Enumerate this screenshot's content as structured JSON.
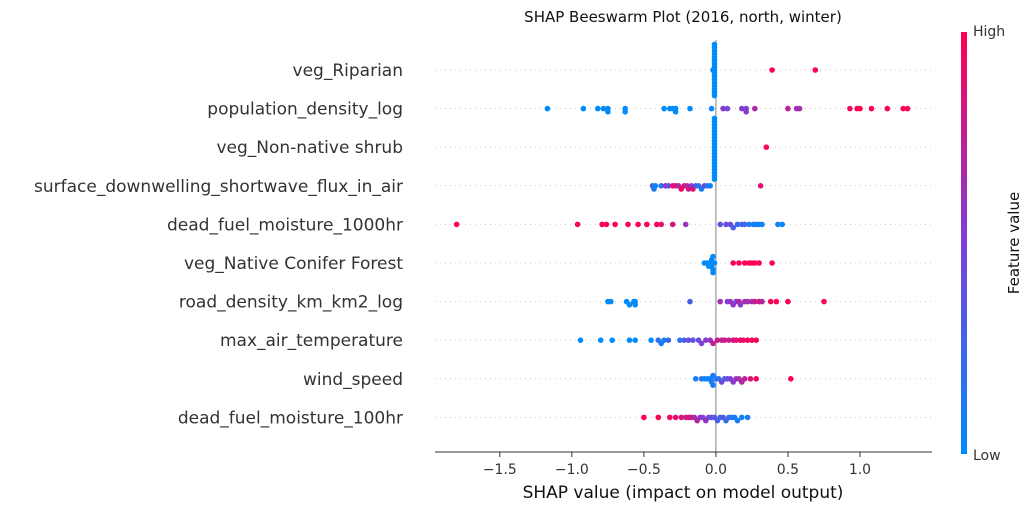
{
  "chart_data": {
    "type": "scatter",
    "title": "SHAP Beeswarm Plot (2016, north, winter)",
    "xlabel": "SHAP value (impact on model output)",
    "xlim": [
      -1.95,
      1.5
    ],
    "x_ticks": [
      -1.5,
      -1.0,
      -0.5,
      0.0,
      0.5,
      1.0
    ],
    "x_tick_labels": [
      "−1.5",
      "−1.0",
      "−0.5",
      "0.0",
      "0.5",
      "1.0"
    ],
    "colorbar": {
      "title": "Feature value",
      "high_label": "High",
      "low_label": "Low",
      "low_color": "#008bfb",
      "high_color": "#ff0052"
    },
    "features": [
      {
        "name": "veg_Riparian",
        "points": [
          [
            -0.02,
            0
          ],
          [
            -0.01,
            0
          ],
          [
            -0.01,
            0
          ],
          [
            -0.01,
            0
          ],
          [
            -0.01,
            0
          ],
          [
            -0.01,
            0
          ],
          [
            -0.01,
            0
          ],
          [
            -0.01,
            0
          ],
          [
            -0.01,
            0
          ],
          [
            -0.01,
            0
          ],
          [
            -0.01,
            0
          ],
          [
            -0.01,
            0
          ],
          [
            -0.01,
            0
          ],
          [
            -0.01,
            0
          ],
          [
            -0.01,
            0
          ],
          [
            -0.01,
            0
          ],
          [
            -0.01,
            0
          ],
          [
            -0.01,
            0
          ],
          [
            0.39,
            1
          ],
          [
            0.69,
            1
          ]
        ]
      },
      {
        "name": "population_density_log",
        "points": [
          [
            -1.17,
            0
          ],
          [
            -0.92,
            0
          ],
          [
            -0.82,
            0
          ],
          [
            -0.78,
            0
          ],
          [
            -0.75,
            0
          ],
          [
            -0.75,
            0
          ],
          [
            -0.63,
            0
          ],
          [
            -0.63,
            0
          ],
          [
            -0.36,
            0
          ],
          [
            -0.32,
            0
          ],
          [
            -0.3,
            0
          ],
          [
            -0.28,
            0
          ],
          [
            -0.28,
            0
          ],
          [
            -0.18,
            0
          ],
          [
            -0.03,
            0.05
          ],
          [
            0.05,
            0.55
          ],
          [
            0.08,
            0.45
          ],
          [
            0.18,
            0.55
          ],
          [
            0.21,
            0.5
          ],
          [
            0.21,
            0.55
          ],
          [
            0.27,
            0.7
          ],
          [
            0.5,
            0.75
          ],
          [
            0.56,
            0.6
          ],
          [
            0.58,
            0.65
          ],
          [
            0.93,
            0.95
          ],
          [
            0.98,
            0.95
          ],
          [
            1.0,
            1
          ],
          [
            1.08,
            1
          ],
          [
            1.19,
            1
          ],
          [
            1.3,
            1
          ],
          [
            1.33,
            1
          ]
        ]
      },
      {
        "name": "veg_Non-native shrub",
        "points": [
          [
            -0.01,
            0
          ],
          [
            -0.01,
            0
          ],
          [
            -0.01,
            0
          ],
          [
            -0.01,
            0
          ],
          [
            -0.01,
            0
          ],
          [
            -0.01,
            0
          ],
          [
            -0.01,
            0
          ],
          [
            -0.01,
            0
          ],
          [
            -0.01,
            0
          ],
          [
            -0.01,
            0
          ],
          [
            -0.01,
            0
          ],
          [
            -0.01,
            0
          ],
          [
            -0.01,
            0
          ],
          [
            -0.01,
            0
          ],
          [
            -0.01,
            0
          ],
          [
            -0.01,
            0
          ],
          [
            -0.01,
            0
          ],
          [
            -0.01,
            0
          ],
          [
            -0.01,
            0
          ],
          [
            -0.01,
            0
          ],
          [
            0.35,
            1
          ]
        ]
      },
      {
        "name": "surface_downwelling_shortwave_flux_in_air",
        "points": [
          [
            -0.44,
            0.3
          ],
          [
            -0.43,
            0.15
          ],
          [
            -0.42,
            0.05
          ],
          [
            -0.38,
            0.15
          ],
          [
            -0.35,
            0.55
          ],
          [
            -0.33,
            0.4
          ],
          [
            -0.3,
            0.9
          ],
          [
            -0.28,
            0.85
          ],
          [
            -0.26,
            0.7
          ],
          [
            -0.24,
            0.95
          ],
          [
            -0.22,
            0.85
          ],
          [
            -0.2,
            0.7
          ],
          [
            -0.19,
            0.8
          ],
          [
            -0.17,
            0.55
          ],
          [
            -0.16,
            0.9
          ],
          [
            -0.14,
            0.35
          ],
          [
            -0.12,
            0.15
          ],
          [
            -0.1,
            0.1
          ],
          [
            -0.08,
            0.5
          ],
          [
            -0.06,
            0.15
          ],
          [
            -0.04,
            0.05
          ],
          [
            0.31,
            0.9
          ]
        ]
      },
      {
        "name": "dead_fuel_moisture_1000hr",
        "points": [
          [
            -1.8,
            1
          ],
          [
            -0.96,
            1
          ],
          [
            -0.79,
            1
          ],
          [
            -0.76,
            1
          ],
          [
            -0.7,
            1
          ],
          [
            -0.61,
            0.95
          ],
          [
            -0.54,
            1
          ],
          [
            -0.48,
            1
          ],
          [
            -0.41,
            0.95
          ],
          [
            -0.38,
            0.9
          ],
          [
            -0.3,
            0.85
          ],
          [
            -0.21,
            0.6
          ],
          [
            0.03,
            0.35
          ],
          [
            0.07,
            0.4
          ],
          [
            0.1,
            0.45
          ],
          [
            0.12,
            0.3
          ],
          [
            0.15,
            0.25
          ],
          [
            0.18,
            0.2
          ],
          [
            0.2,
            0.3
          ],
          [
            0.23,
            0.1
          ],
          [
            0.26,
            0.05
          ],
          [
            0.28,
            0.1
          ],
          [
            0.3,
            0.05
          ],
          [
            0.32,
            0.05
          ],
          [
            0.43,
            0.05
          ],
          [
            0.46,
            0.05
          ]
        ]
      },
      {
        "name": "veg_Native Conifer Forest",
        "points": [
          [
            -0.08,
            0
          ],
          [
            -0.06,
            0
          ],
          [
            -0.05,
            0
          ],
          [
            -0.04,
            0
          ],
          [
            -0.03,
            0
          ],
          [
            -0.03,
            0
          ],
          [
            -0.02,
            0
          ],
          [
            -0.02,
            0
          ],
          [
            -0.02,
            0
          ],
          [
            -0.01,
            0
          ],
          [
            0.12,
            1
          ],
          [
            0.16,
            1
          ],
          [
            0.2,
            1
          ],
          [
            0.23,
            1
          ],
          [
            0.25,
            1
          ],
          [
            0.27,
            1
          ],
          [
            0.3,
            1
          ],
          [
            0.39,
            1
          ]
        ]
      },
      {
        "name": "road_density_km_km2_log",
        "points": [
          [
            -0.75,
            0
          ],
          [
            -0.73,
            0
          ],
          [
            -0.62,
            0
          ],
          [
            -0.6,
            0
          ],
          [
            -0.57,
            0
          ],
          [
            -0.56,
            0
          ],
          [
            -0.56,
            0
          ],
          [
            -0.18,
            0.3
          ],
          [
            0.03,
            0.65
          ],
          [
            0.08,
            0.5
          ],
          [
            0.1,
            0.6
          ],
          [
            0.12,
            0.55
          ],
          [
            0.14,
            0.5
          ],
          [
            0.16,
            0.7
          ],
          [
            0.17,
            0.55
          ],
          [
            0.2,
            0.65
          ],
          [
            0.22,
            0.6
          ],
          [
            0.25,
            0.7
          ],
          [
            0.27,
            0.75
          ],
          [
            0.3,
            0.85
          ],
          [
            0.32,
            0.7
          ],
          [
            0.38,
            0.95
          ],
          [
            0.42,
            1
          ],
          [
            0.5,
            1
          ],
          [
            0.75,
            0.95
          ]
        ]
      },
      {
        "name": "max_air_temperature",
        "points": [
          [
            -0.94,
            0
          ],
          [
            -0.8,
            0
          ],
          [
            -0.72,
            0
          ],
          [
            -0.6,
            0
          ],
          [
            -0.56,
            0
          ],
          [
            -0.45,
            0
          ],
          [
            -0.4,
            0.2
          ],
          [
            -0.38,
            0.1
          ],
          [
            -0.36,
            0.05
          ],
          [
            -0.33,
            0.25
          ],
          [
            -0.25,
            0.15
          ],
          [
            -0.22,
            0.3
          ],
          [
            -0.19,
            0.4
          ],
          [
            -0.16,
            0.35
          ],
          [
            -0.12,
            0.45
          ],
          [
            -0.1,
            0.5
          ],
          [
            -0.07,
            0.55
          ],
          [
            -0.04,
            0.6
          ],
          [
            -0.02,
            0.75
          ],
          [
            0.01,
            0.8
          ],
          [
            0.04,
            0.7
          ],
          [
            0.06,
            0.85
          ],
          [
            0.09,
            0.75
          ],
          [
            0.12,
            0.9
          ],
          [
            0.14,
            0.85
          ],
          [
            0.17,
            0.95
          ],
          [
            0.19,
            0.9
          ],
          [
            0.22,
            1
          ],
          [
            0.25,
            0.95
          ],
          [
            0.28,
            1
          ]
        ]
      },
      {
        "name": "wind_speed",
        "points": [
          [
            -0.14,
            0.1
          ],
          [
            -0.1,
            0.15
          ],
          [
            -0.08,
            0.05
          ],
          [
            -0.06,
            0.05
          ],
          [
            -0.04,
            0.05
          ],
          [
            -0.03,
            0.1
          ],
          [
            -0.02,
            0.1
          ],
          [
            -0.02,
            0.1
          ],
          [
            0.0,
            0.1
          ],
          [
            0.02,
            0.2
          ],
          [
            0.04,
            0.45
          ],
          [
            0.06,
            0.3
          ],
          [
            0.08,
            0.4
          ],
          [
            0.1,
            0.5
          ],
          [
            0.12,
            0.55
          ],
          [
            0.14,
            0.6
          ],
          [
            0.16,
            0.65
          ],
          [
            0.18,
            0.7
          ],
          [
            0.2,
            0.75
          ],
          [
            0.24,
            0.85
          ],
          [
            0.28,
            0.95
          ],
          [
            0.52,
            1
          ]
        ]
      },
      {
        "name": "dead_fuel_moisture_100hr",
        "points": [
          [
            -0.5,
            1
          ],
          [
            -0.4,
            1
          ],
          [
            -0.32,
            0.95
          ],
          [
            -0.28,
            0.9
          ],
          [
            -0.24,
            0.85
          ],
          [
            -0.21,
            0.75
          ],
          [
            -0.19,
            0.9
          ],
          [
            -0.17,
            0.8
          ],
          [
            -0.15,
            0.65
          ],
          [
            -0.13,
            0.7
          ],
          [
            -0.11,
            0.6
          ],
          [
            -0.09,
            0.5
          ],
          [
            -0.07,
            0.6
          ],
          [
            -0.05,
            0.45
          ],
          [
            -0.03,
            0.4
          ],
          [
            -0.01,
            0.35
          ],
          [
            0.01,
            0.3
          ],
          [
            0.03,
            0.25
          ],
          [
            0.05,
            0.35
          ],
          [
            0.07,
            0.2
          ],
          [
            0.09,
            0.25
          ],
          [
            0.11,
            0.15
          ],
          [
            0.13,
            0.1
          ],
          [
            0.15,
            0.1
          ],
          [
            0.18,
            0.05
          ],
          [
            0.22,
            0.1
          ]
        ]
      }
    ]
  }
}
